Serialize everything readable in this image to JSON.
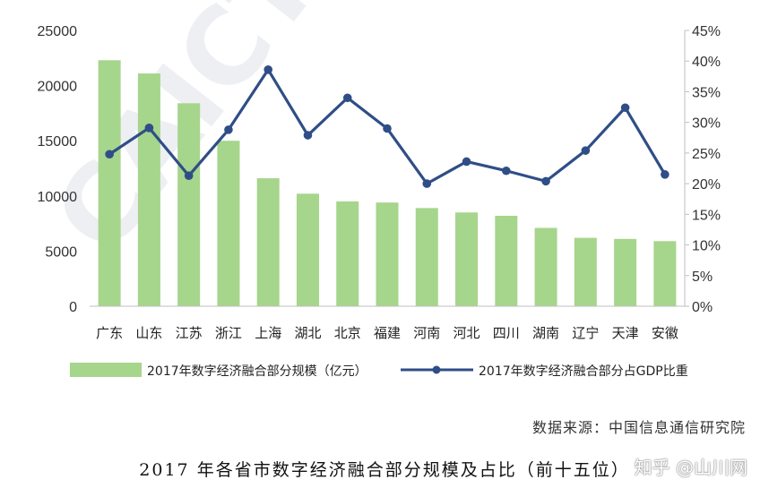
{
  "chart_data": {
    "type": "bar",
    "categories": [
      "广东",
      "山东",
      "江苏",
      "浙江",
      "上海",
      "湖北",
      "北京",
      "福建",
      "河南",
      "河北",
      "四川",
      "湖南",
      "辽宁",
      "天津",
      "安徽"
    ],
    "series": [
      {
        "name": "2017年数字经济融合部分规模（亿元）",
        "kind": "bar",
        "axis": "left",
        "values": [
          22300,
          21100,
          18400,
          15000,
          11600,
          10200,
          9500,
          9400,
          8900,
          8500,
          8200,
          7100,
          6200,
          6100,
          5900
        ]
      },
      {
        "name": "2017年数字经济融合部分占GDP比重",
        "kind": "line",
        "axis": "right",
        "values": [
          24.8,
          29.1,
          21.3,
          28.8,
          38.6,
          27.9,
          34.0,
          29.0,
          20.0,
          23.6,
          22.1,
          20.4,
          25.4,
          32.4,
          21.5
        ]
      }
    ],
    "y_left": {
      "min": 0,
      "max": 25000,
      "ticks": [
        "0",
        "5000",
        "10000",
        "15000",
        "20000",
        "25000"
      ]
    },
    "y_right": {
      "min": 0,
      "max": 45,
      "ticks": [
        "0%",
        "5%",
        "10%",
        "15%",
        "20%",
        "25%",
        "30%",
        "35%",
        "40%",
        "45%"
      ]
    },
    "colors": {
      "bar": "#a6d58c",
      "line": "#2f4e87"
    },
    "legend_position": "bottom",
    "grid": false
  },
  "source": "数据来源：中国信息通信研究院",
  "caption": "2017 年各省市数字经济融合部分规模及占比（前十五位）",
  "watermarks": {
    "diagonal": "CAICT 中",
    "zhihu": "知乎 @山川网"
  }
}
